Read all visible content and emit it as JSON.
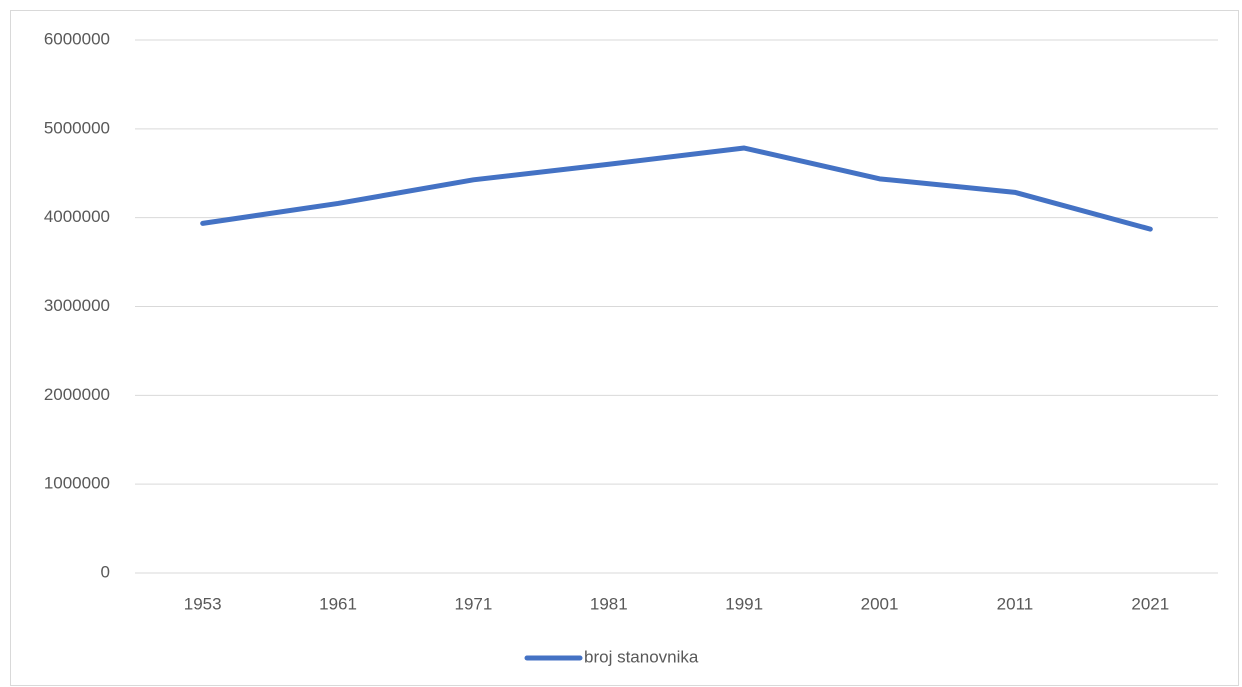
{
  "chart_data": {
    "type": "line",
    "categories": [
      "1953",
      "1961",
      "1971",
      "1981",
      "1991",
      "2001",
      "2011",
      "2021"
    ],
    "series": [
      {
        "name": "broj stanovnika",
        "color": "#4472c4",
        "values": [
          3936000,
          4160000,
          4426000,
          4601000,
          4784000,
          4437000,
          4285000,
          3871000
        ]
      }
    ],
    "ylim": [
      0,
      6000000
    ],
    "yticks": [
      0,
      1000000,
      2000000,
      3000000,
      4000000,
      5000000,
      6000000
    ],
    "grid": true,
    "legend": "bottom"
  }
}
